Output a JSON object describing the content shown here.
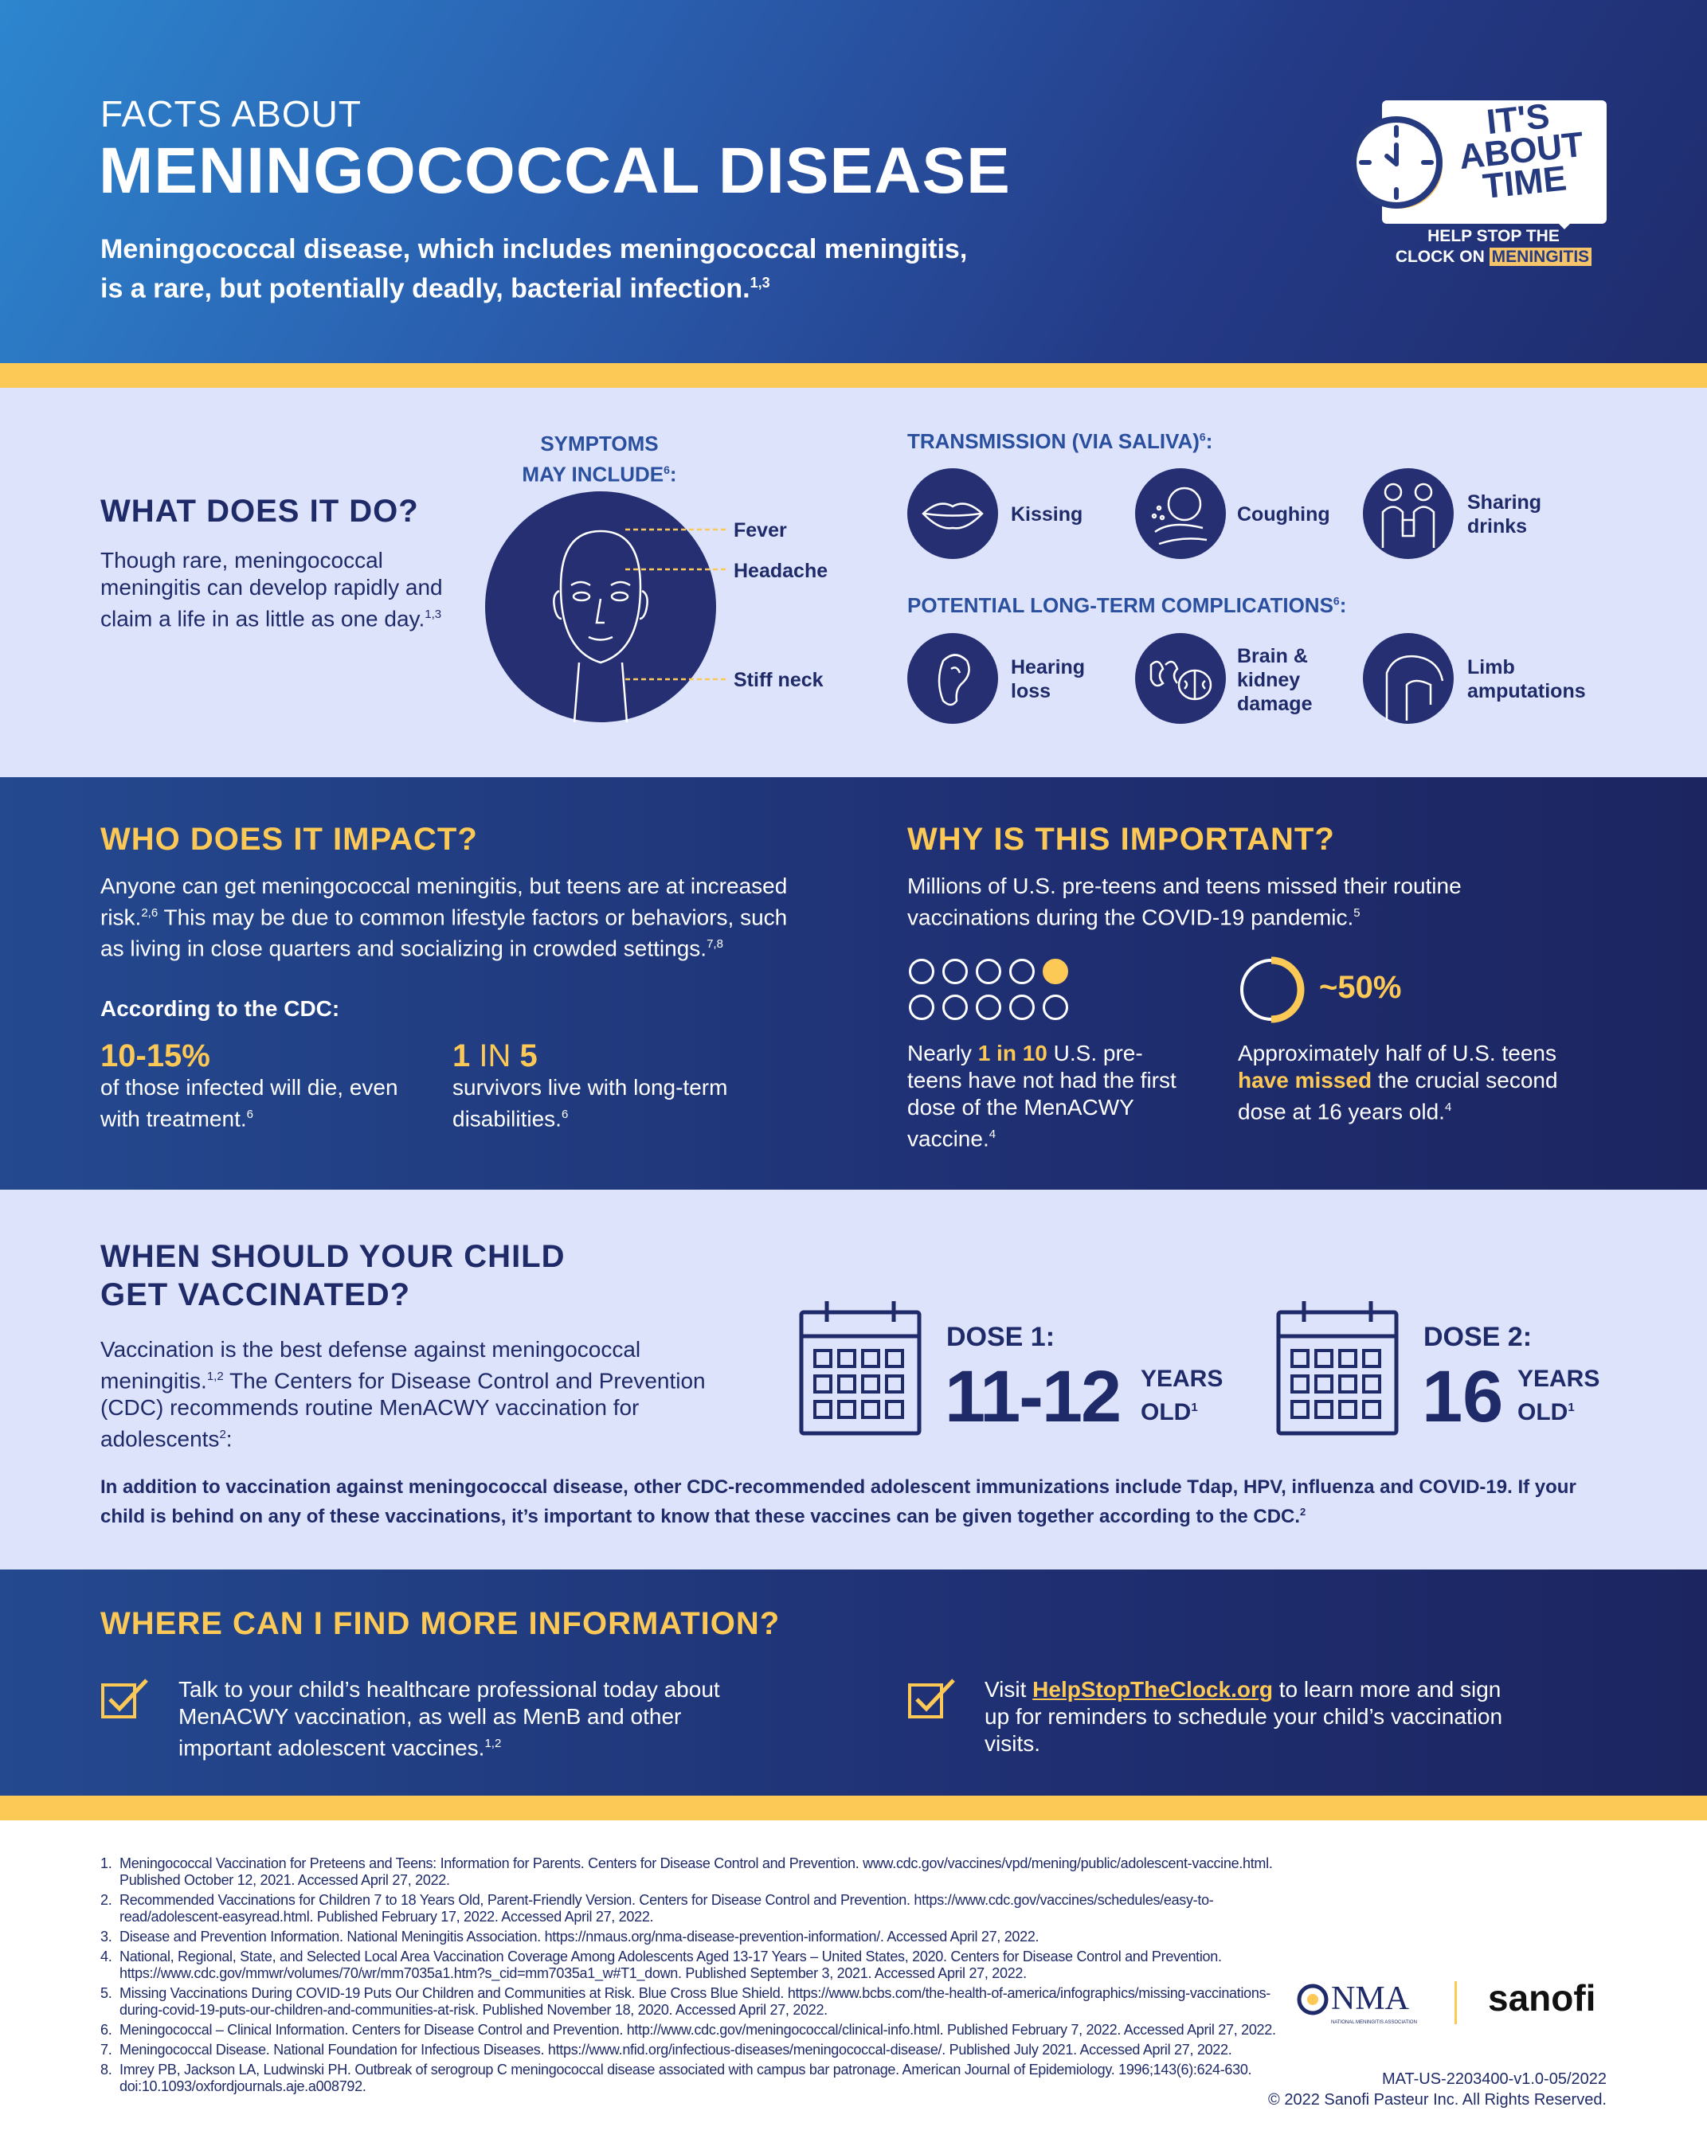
{
  "header": {
    "kicker": "FACTS ABOUT",
    "title": "MENINGOCOCCAL DISEASE",
    "subtitle_1": "Meningococcal disease, which includes meningococcal meningitis,",
    "subtitle_2": "is a rare, but potentially deadly, bacterial infection.",
    "subtitle_sup": "1,3"
  },
  "logo": {
    "line1": "IT'S",
    "line2": "ABOUT",
    "line3": "TIME",
    "tag1": "HELP STOP THE",
    "tag2a": "CLOCK ON",
    "tag2b": "MENINGITIS"
  },
  "what": {
    "heading_bold": "WHAT",
    "heading_rest": " DOES IT DO?",
    "text": "Though rare, meningococcal meningitis can develop rapidly and claim a life in as little as one day.",
    "sup": "1,3"
  },
  "symptoms": {
    "title_1": "SYMPTOMS",
    "title_2": "MAY INCLUDE",
    "sup": "6",
    "items": [
      "Fever",
      "Headache",
      "Stiff neck"
    ]
  },
  "transmission": {
    "title": "TRANSMISSION (VIA SALIVA)",
    "sup": "6",
    "items": [
      {
        "label": "Kissing",
        "icon": "lips-icon"
      },
      {
        "label": "Coughing",
        "icon": "coughing-icon"
      },
      {
        "label": "Sharing drinks",
        "icon": "sharing-drinks-icon"
      }
    ]
  },
  "complications": {
    "title": "POTENTIAL LONG-TERM COMPLICATIONS",
    "sup": "6",
    "items": [
      {
        "label": "Hearing loss",
        "icon": "ear-icon"
      },
      {
        "label": "Brain & kidney damage",
        "icon": "brain-kidney-icon"
      },
      {
        "label": "Limb amputations",
        "icon": "limb-icon"
      }
    ]
  },
  "who": {
    "heading_bold": "WHO",
    "heading_rest": " DOES IT IMPACT?",
    "text_1": "Anyone can get meningococcal meningitis, but teens are at increased risk.",
    "sup_1": "2,6",
    "text_2": " This may be due to common lifestyle factors or behaviors, such as living in close quarters and socializing in crowded settings.",
    "sup_2": "7,8",
    "cdc": "According to the CDC:",
    "stat1_value": "10-15%",
    "stat1_text": "of those infected will die, even with treatment.",
    "stat1_sup": "6",
    "stat2_a": "1",
    "stat2_b": " IN ",
    "stat2_c": "5",
    "stat2_text": "survivors live with long-term disabilities.",
    "stat2_sup": "6"
  },
  "why": {
    "heading_bold": "WHY",
    "heading_rest": " IS THIS IMPORTANT?",
    "text": "Millions of U.S. pre-teens and teens missed their routine vaccinations during the COVID-19 pandemic.",
    "sup": "5",
    "dots_filled": 1,
    "dots_total": 10,
    "stat1_pre": "Nearly ",
    "stat1_bold": "1 in 10",
    "stat1_post": " U.S. pre-teens have not had the first dose of the MenACWY vaccine.",
    "stat1_sup": "4",
    "donut_percent": 50,
    "stat2_value": "~50%",
    "stat2_pre": "Approximately half of U.S. teens ",
    "stat2_bold": "have missed",
    "stat2_post": " the crucial second dose at 16 years old.",
    "stat2_sup": "4"
  },
  "when": {
    "heading_bold": "WHEN",
    "heading_rest_1": " SHOULD YOUR CHILD",
    "heading_rest_2": "GET VACCINATED?",
    "text_1": "Vaccination is the best defense against meningococcal meningitis.",
    "sup_1": "1,2",
    "text_2": " The Centers for Disease Control and Prevention (CDC) recommends routine MenACWY vaccination for adolescents",
    "sup_2": "2",
    "text_3": ":",
    "dose1": {
      "label": "DOSE 1:",
      "age": "11-12",
      "years": "YEARS",
      "old": "OLD",
      "sup": "1"
    },
    "dose2": {
      "label": "DOSE 2:",
      "age": "16",
      "years": "YEARS",
      "old": "OLD",
      "sup": "1"
    },
    "note": "In addition to vaccination against meningococcal disease, other CDC-recommended adolescent immunizations include Tdap, HPV, influenza and COVID-19. If your child is behind on any of these vaccinations, it’s important to know that these vaccines can be given together according to the CDC.",
    "note_sup": "2"
  },
  "where": {
    "heading_bold": "WHERE",
    "heading_rest": " CAN I FIND MORE INFORMATION?",
    "item1": "Talk to your child’s healthcare professional today about MenACWY vaccination, as well as MenB and other important adolescent vaccines.",
    "item1_sup": "1,2",
    "item2_pre": "Visit ",
    "item2_link": "HelpStopTheClock.org",
    "item2_post": " to learn more and sign up for reminders to schedule your child’s vaccination visits."
  },
  "references": [
    "Meningococcal Vaccination for Preteens and Teens: Information for Parents. Centers for Disease Control and Prevention. www.cdc.gov/vaccines/vpd/mening/public/adolescent-vaccine.html. Published October 12, 2021. Accessed April 27, 2022.",
    "Recommended Vaccinations for Children 7 to 18 Years Old, Parent-Friendly Version. Centers for Disease Control and Prevention. https://www.cdc.gov/vaccines/schedules/easy-to-read/adolescent-easyread.html. Published February 17, 2022. Accessed April 27, 2022.",
    "Disease and Prevention Information. National Meningitis Association. https://nmaus.org/nma-disease-prevention-information/. Accessed April 27, 2022.",
    "National, Regional, State, and Selected Local Area Vaccination Coverage Among Adolescents Aged 13-17 Years – United States, 2020. Centers for Disease Control and Prevention. https://www.cdc.gov/mmwr/volumes/70/wr/mm7035a1.htm?s_cid=mm7035a1_w#T1_down. Published September 3, 2021. Accessed April 27, 2022.",
    "Missing Vaccinations During COVID-19 Puts Our Children and Communities at Risk. Blue Cross Blue Shield. https://www.bcbs.com/the-health-of-america/infographics/missing-vaccinations-during-covid-19-puts-our-children-and-communities-at-risk. Published November 18, 2020. Accessed April 27, 2022.",
    "Meningococcal – Clinical Information. Centers for Disease Control and Prevention. http://www.cdc.gov/meningococcal/clinical-info.html. Published February 7, 2022. Accessed April 27, 2022.",
    "Meningococcal Disease. National Foundation for Infectious Diseases. https://www.nfid.org/infectious-diseases/meningococcal-disease/. Published July 2021. Accessed April 27, 2022.",
    "Imrey PB, Jackson LA, Ludwinski PH. Outbreak of serogroup C meningococcal disease associated with campus bar patronage. American Journal of Epidemiology. 1996;143(6):624-630. doi:10.1093/oxfordjournals.aje.a008792."
  ],
  "footer": {
    "nma_logo": "NMA",
    "nma_sub": "NATIONAL MENINGITIS ASSOCIATION",
    "sanofi_logo": "sanofi",
    "code": "MAT-US-2203400-v1.0-05/2022",
    "copyright": "© 2022 Sanofi Pasteur Inc. All Rights Reserved."
  },
  "colors": {
    "navy": "#1f2a68",
    "yellow": "#fdc956",
    "light": "#dde3fb"
  }
}
